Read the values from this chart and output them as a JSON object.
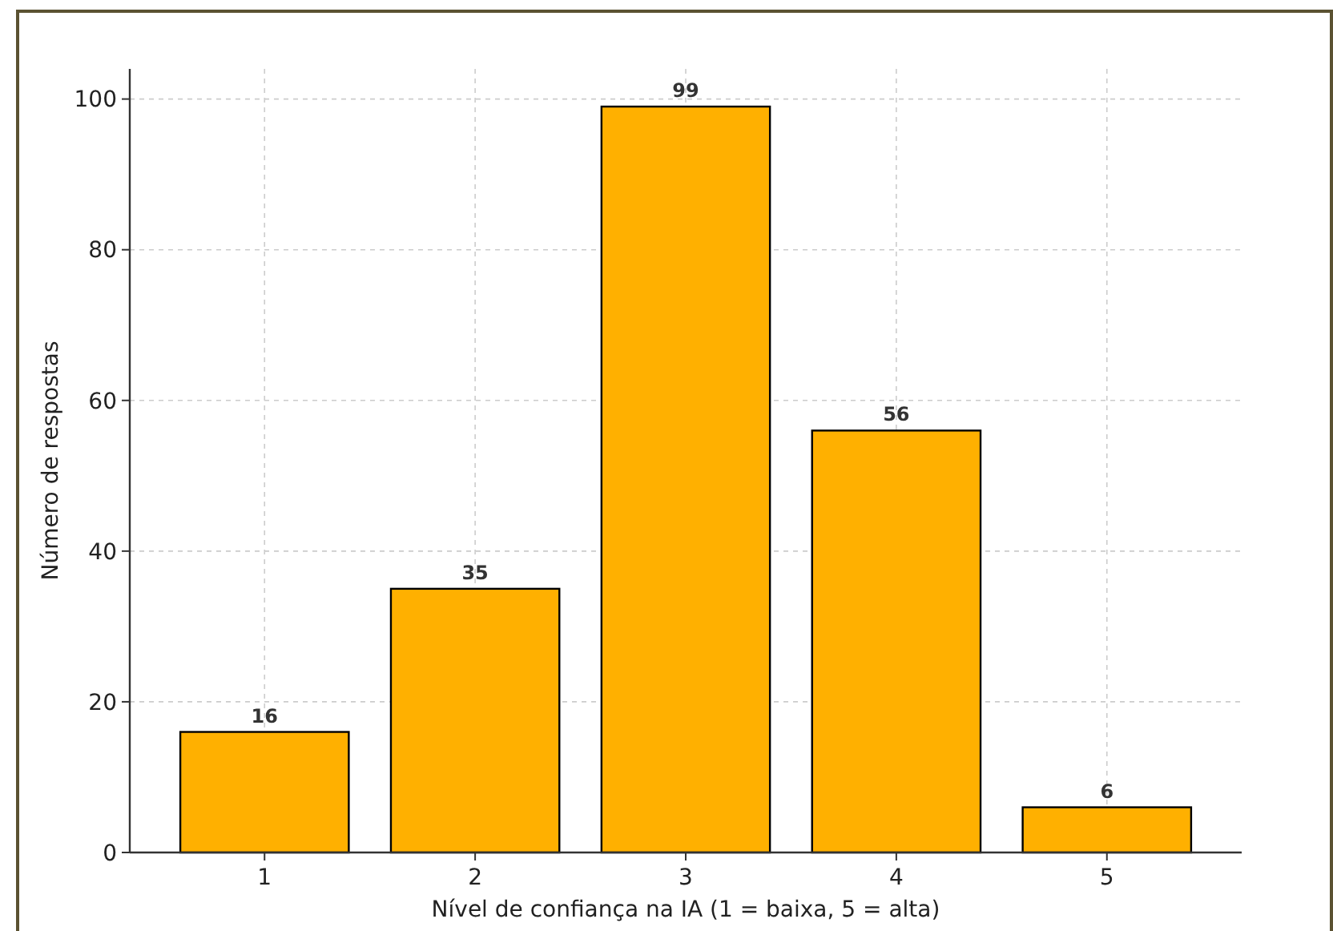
{
  "chart_data": {
    "type": "bar",
    "xlabel": "Nível de confiança na IA (1 = baixa, 5 = alta)",
    "ylabel": "Número de respostas",
    "categories": [
      "1",
      "2",
      "3",
      "4",
      "5"
    ],
    "values": [
      16,
      35,
      99,
      56,
      6
    ],
    "color": "#ffb000",
    "ylim": [
      0,
      104
    ],
    "yticks": [
      0,
      20,
      40,
      60,
      80,
      100
    ],
    "grid": true,
    "data_labels": true
  }
}
